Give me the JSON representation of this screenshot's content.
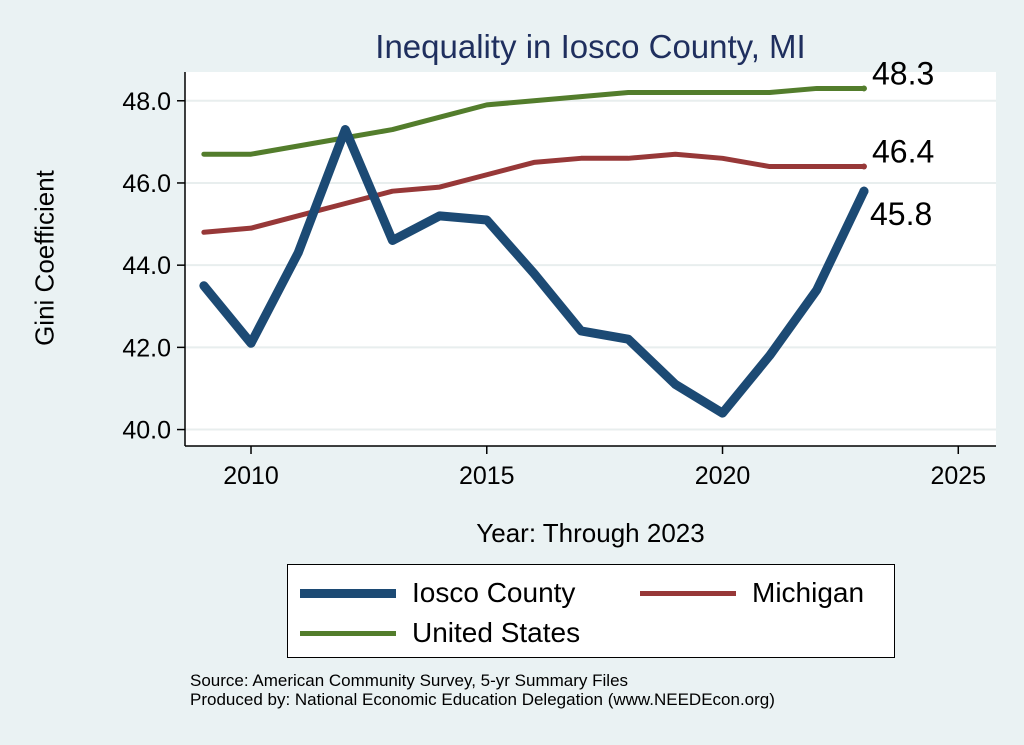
{
  "chart_data": {
    "type": "line",
    "title": "Inequality in Iosco County, MI",
    "xlabel": "Year: Through 2023",
    "ylabel": "Gini Coefficient",
    "xlim": [
      2008.6,
      2025.8
    ],
    "ylim": [
      39.6,
      48.7
    ],
    "xticks": [
      2010,
      2015,
      2020,
      2025
    ],
    "yticks": [
      40,
      42,
      44,
      46,
      48
    ],
    "ytick_labels": [
      "40.0",
      "42.0",
      "44.0",
      "46.0",
      "48.0"
    ],
    "grid": true,
    "x": [
      2009,
      2010,
      2011,
      2012,
      2013,
      2014,
      2015,
      2016,
      2017,
      2018,
      2019,
      2020,
      2021,
      2022,
      2023
    ],
    "series": [
      {
        "name": "Iosco County",
        "color": "#1c4a74",
        "values": [
          43.5,
          42.1,
          44.3,
          47.3,
          44.6,
          45.2,
          45.1,
          43.8,
          42.4,
          42.2,
          41.1,
          40.4,
          41.8,
          43.4,
          45.8
        ],
        "end_label": "45.8"
      },
      {
        "name": "Michigan",
        "color": "#973838",
        "values": [
          44.8,
          44.9,
          45.2,
          45.5,
          45.8,
          45.9,
          46.2,
          46.5,
          46.6,
          46.6,
          46.7,
          46.6,
          46.4,
          46.4,
          46.4
        ],
        "end_label": "46.4"
      },
      {
        "name": "United States",
        "color": "#537d2c",
        "values": [
          46.7,
          46.7,
          46.9,
          47.1,
          47.3,
          47.6,
          47.9,
          48.0,
          48.1,
          48.2,
          48.2,
          48.2,
          48.2,
          48.3,
          48.3
        ],
        "end_label": "48.3"
      }
    ],
    "legend": {
      "position": "bottom",
      "entries": [
        "Iosco County",
        "Michigan",
        "United States"
      ]
    }
  },
  "footer": {
    "source": "Source: American Community Survey, 5-yr Summary Files",
    "producer": "Produced by: National Economic Education Delegation (www.NEEDEcon.org)"
  }
}
